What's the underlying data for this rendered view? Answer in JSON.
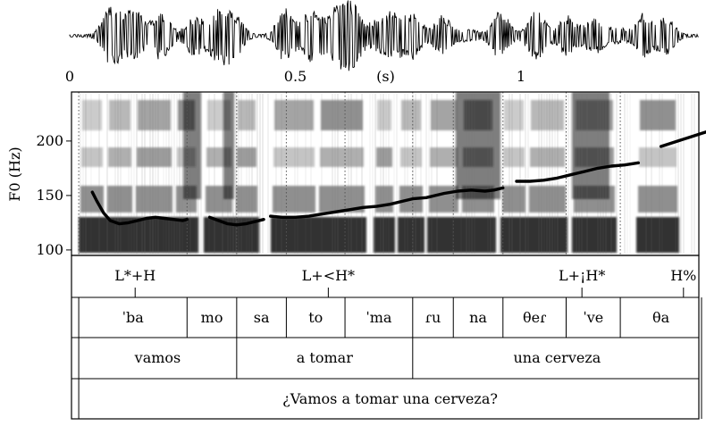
{
  "time_axis": {
    "ticks": [
      {
        "t": 0,
        "label": "0"
      },
      {
        "t": 0.5,
        "label": "0.5"
      },
      {
        "t": 1,
        "label": "1"
      }
    ],
    "unit_label": "(s)",
    "unit_t": 0.7
  },
  "f0_axis": {
    "label": "F0 (Hz)",
    "ticks": [
      {
        "hz": 100,
        "label": "100"
      },
      {
        "hz": 150,
        "label": "150"
      },
      {
        "hz": 200,
        "label": "200"
      }
    ],
    "range_hz": [
      95,
      245
    ]
  },
  "tones": [
    {
      "t": 0.145,
      "label": "L*+H"
    },
    {
      "t": 1.135,
      "label": "L+¡H*"
    },
    {
      "t": 1.36,
      "label": "H%"
    }
  ],
  "tone_mid": {
    "t": 0.573,
    "label": "L+<H*"
  },
  "syllables": [
    {
      "start": 0.02,
      "end": 0.26,
      "label": "ˈba"
    },
    {
      "start": 0.26,
      "end": 0.37,
      "label": "mo"
    },
    {
      "start": 0.37,
      "end": 0.48,
      "label": "sa"
    },
    {
      "start": 0.48,
      "end": 0.61,
      "label": "to"
    },
    {
      "start": 0.61,
      "end": 0.76,
      "label": "ˈma"
    },
    {
      "start": 0.76,
      "end": 0.85,
      "label": "ɾu"
    },
    {
      "start": 0.85,
      "end": 0.96,
      "label": "na"
    },
    {
      "start": 0.96,
      "end": 1.1,
      "label": "θeɾ"
    },
    {
      "start": 1.1,
      "end": 1.22,
      "label": "ˈve"
    },
    {
      "start": 1.22,
      "end": 1.4,
      "label": "θa"
    }
  ],
  "words": [
    {
      "start": 0.02,
      "end": 0.37,
      "label": "vamos"
    },
    {
      "start": 0.37,
      "end": 0.76,
      "label": "a tomar"
    },
    {
      "start": 0.76,
      "end": 1.4,
      "label": "una cerveza"
    }
  ],
  "sentence": {
    "start": 0.02,
    "end": 1.4,
    "label": "¿Vamos a tomar una cerveza?"
  },
  "f0_segments": [
    [
      [
        0.05,
        153
      ],
      [
        0.06,
        145
      ],
      [
        0.075,
        134
      ],
      [
        0.09,
        127
      ],
      [
        0.11,
        124
      ],
      [
        0.13,
        125
      ],
      [
        0.15,
        127
      ],
      [
        0.17,
        129
      ],
      [
        0.19,
        130
      ],
      [
        0.21,
        129
      ],
      [
        0.23,
        128
      ],
      [
        0.25,
        127
      ],
      [
        0.26,
        128
      ]
    ],
    [
      [
        0.31,
        130
      ],
      [
        0.33,
        127
      ],
      [
        0.35,
        124
      ],
      [
        0.37,
        123
      ],
      [
        0.39,
        124
      ],
      [
        0.41,
        126
      ],
      [
        0.43,
        128
      ]
    ],
    [
      [
        0.445,
        131
      ],
      [
        0.47,
        130
      ],
      [
        0.5,
        130
      ],
      [
        0.53,
        131
      ],
      [
        0.56,
        133
      ],
      [
        0.59,
        135
      ],
      [
        0.62,
        137
      ],
      [
        0.65,
        139
      ],
      [
        0.68,
        140
      ],
      [
        0.71,
        142
      ],
      [
        0.74,
        145
      ],
      [
        0.76,
        147
      ],
      [
        0.79,
        148
      ],
      [
        0.81,
        150
      ],
      [
        0.83,
        152
      ],
      [
        0.86,
        154
      ],
      [
        0.89,
        155
      ],
      [
        0.92,
        154
      ],
      [
        0.94,
        155
      ],
      [
        0.96,
        157
      ]
    ],
    [
      [
        0.99,
        163
      ],
      [
        1.02,
        163
      ],
      [
        1.05,
        164
      ],
      [
        1.08,
        166
      ],
      [
        1.11,
        169
      ],
      [
        1.14,
        172
      ],
      [
        1.17,
        175
      ],
      [
        1.2,
        177
      ],
      [
        1.23,
        178
      ],
      [
        1.26,
        180
      ]
    ],
    [
      [
        1.31,
        195
      ],
      [
        1.34,
        199
      ],
      [
        1.37,
        203
      ],
      [
        1.4,
        207
      ],
      [
        1.43,
        211
      ],
      [
        1.46,
        214
      ],
      [
        1.475,
        215
      ]
    ]
  ],
  "colors": {
    "f0_curve": "#000000",
    "frame": "#000000",
    "waveform": "#000000"
  }
}
